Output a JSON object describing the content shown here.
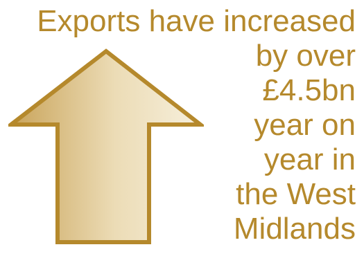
{
  "headline": {
    "lines": [
      "Exports have increased",
      "by over",
      "£4.5bn",
      "year on",
      "year in",
      "the West",
      "Midlands"
    ]
  },
  "colors": {
    "text": "#b5892c",
    "arrow_stroke": "#b5892c",
    "arrow_fill_dark": "#c9a45a",
    "arrow_fill_light": "#f6efdc"
  },
  "icons": {
    "arrow": "up-arrow-icon"
  }
}
